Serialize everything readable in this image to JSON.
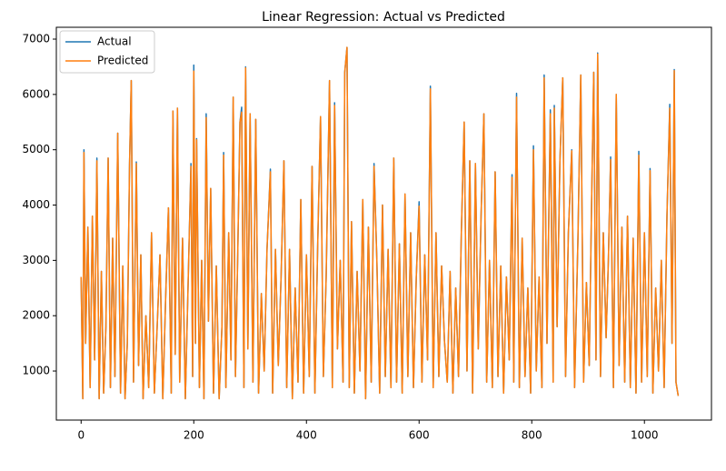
{
  "chart_data": {
    "type": "line",
    "title": "Linear Regression: Actual vs Predicted",
    "x": [
      0,
      3,
      5,
      8,
      12,
      16,
      20,
      24,
      28,
      32,
      36,
      40,
      44,
      48,
      52,
      56,
      60,
      65,
      70,
      74,
      78,
      82,
      86,
      89,
      93,
      98,
      102,
      106,
      110,
      115,
      120,
      125,
      130,
      135,
      140,
      145,
      150,
      155,
      160,
      163,
      167,
      171,
      175,
      180,
      185,
      190,
      195,
      198,
      200,
      203,
      205,
      210,
      214,
      218,
      222,
      226,
      230,
      235,
      240,
      245,
      250,
      253,
      257,
      262,
      266,
      270,
      274,
      278,
      282,
      285,
      289,
      292,
      296,
      300,
      305,
      310,
      315,
      320,
      325,
      330,
      336,
      340,
      345,
      350,
      355,
      360,
      365,
      370,
      375,
      380,
      385,
      390,
      395,
      400,
      405,
      410,
      415,
      420,
      425,
      430,
      435,
      441,
      446,
      450,
      455,
      460,
      465,
      468,
      472,
      476,
      480,
      485,
      490,
      495,
      500,
      505,
      510,
      515,
      520,
      525,
      530,
      535,
      540,
      545,
      550,
      555,
      560,
      565,
      570,
      575,
      580,
      585,
      590,
      595,
      600,
      605,
      610,
      615,
      620,
      625,
      630,
      635,
      640,
      645,
      650,
      655,
      660,
      665,
      670,
      675,
      680,
      685,
      690,
      695,
      700,
      705,
      710,
      715,
      720,
      725,
      730,
      735,
      740,
      745,
      750,
      755,
      760,
      765,
      768,
      773,
      778,
      783,
      788,
      793,
      798,
      803,
      808,
      813,
      818,
      822,
      827,
      833,
      838,
      840,
      845,
      850,
      855,
      860,
      865,
      871,
      876,
      882,
      887,
      892,
      897,
      902,
      906,
      910,
      914,
      917,
      922,
      927,
      932,
      936,
      940,
      945,
      950,
      955,
      960,
      965,
      970,
      975,
      980,
      985,
      990,
      995,
      1000,
      1005,
      1010,
      1015,
      1020,
      1025,
      1030,
      1035,
      1040,
      1045,
      1049,
      1053,
      1056,
      1060
    ],
    "series": [
      {
        "name": "Actual",
        "color": "#1f77b4",
        "values": [
          2700,
          500,
          5000,
          1500,
          3600,
          700,
          3800,
          1200,
          4850,
          500,
          2800,
          600,
          1800,
          4850,
          700,
          3400,
          900,
          5300,
          600,
          2900,
          500,
          1500,
          4750,
          6250,
          800,
          4780,
          1100,
          3100,
          500,
          2000,
          700,
          3500,
          600,
          1800,
          3100,
          500,
          2300,
          3950,
          600,
          5700,
          1300,
          5750,
          800,
          3400,
          500,
          2600,
          4750,
          900,
          6530,
          1500,
          5200,
          700,
          3000,
          500,
          5650,
          1900,
          4300,
          600,
          2900,
          500,
          1800,
          4950,
          700,
          3500,
          1200,
          5950,
          900,
          3100,
          5500,
          5770,
          700,
          6500,
          1400,
          5650,
          800,
          5550,
          600,
          2400,
          1000,
          3200,
          4650,
          600,
          3200,
          1100,
          2700,
          4800,
          700,
          3200,
          500,
          2500,
          800,
          4100,
          600,
          3100,
          900,
          4700,
          600,
          3300,
          5600,
          900,
          2700,
          6250,
          700,
          5850,
          1400,
          3000,
          800,
          6400,
          6850,
          700,
          3700,
          600,
          2800,
          1000,
          4100,
          500,
          3600,
          800,
          4750,
          3000,
          600,
          4000,
          900,
          3200,
          700,
          4850,
          800,
          3300,
          600,
          4200,
          900,
          3500,
          700,
          2700,
          4060,
          800,
          3100,
          1200,
          6150,
          700,
          3500,
          900,
          2900,
          1550,
          800,
          2800,
          600,
          2500,
          900,
          3500,
          5500,
          1000,
          4800,
          600,
          4750,
          1400,
          3800,
          5650,
          800,
          3000,
          700,
          4600,
          900,
          2900,
          600,
          2700,
          1200,
          4550,
          800,
          6020,
          700,
          3400,
          900,
          2500,
          600,
          5070,
          1000,
          2700,
          700,
          6350,
          1500,
          5720,
          800,
          5800,
          1800,
          4800,
          6300,
          900,
          3500,
          5000,
          700,
          3400,
          6350,
          800,
          2600,
          1100,
          3900,
          6400,
          1200,
          6750,
          900,
          3500,
          1600,
          3000,
          4870,
          700,
          6000,
          1100,
          3600,
          800,
          3800,
          700,
          3400,
          600,
          4970,
          800,
          3500,
          900,
          4660,
          600,
          2500,
          1000,
          3000,
          700,
          3800,
          5820,
          1500,
          6450,
          800,
          550
        ]
      },
      {
        "name": "Predicted",
        "color": "#ff7f0e",
        "values": [
          2700,
          500,
          4950,
          1500,
          3600,
          700,
          3800,
          1200,
          4800,
          500,
          2800,
          600,
          1800,
          4850,
          700,
          3400,
          900,
          5300,
          600,
          2900,
          500,
          1500,
          4750,
          6250,
          800,
          4750,
          1100,
          3100,
          500,
          2000,
          700,
          3500,
          600,
          1800,
          3100,
          500,
          2300,
          3950,
          600,
          5700,
          1300,
          5750,
          800,
          3400,
          500,
          2600,
          4700,
          900,
          6420,
          1500,
          5180,
          700,
          3000,
          500,
          5580,
          1900,
          4300,
          600,
          2900,
          500,
          1800,
          4900,
          700,
          3500,
          1200,
          5950,
          900,
          3100,
          5500,
          5680,
          700,
          6480,
          1400,
          5650,
          800,
          5550,
          600,
          2400,
          1000,
          3200,
          4600,
          600,
          3200,
          1100,
          2700,
          4800,
          700,
          3200,
          500,
          2500,
          800,
          4100,
          600,
          3100,
          900,
          4700,
          600,
          3300,
          5600,
          900,
          2700,
          6250,
          700,
          5800,
          1400,
          3000,
          800,
          6400,
          6850,
          700,
          3700,
          600,
          2800,
          1000,
          4100,
          500,
          3600,
          800,
          4700,
          3000,
          600,
          4000,
          900,
          3200,
          700,
          4850,
          800,
          3300,
          600,
          4200,
          900,
          3500,
          700,
          2700,
          3980,
          800,
          3100,
          1200,
          6100,
          700,
          3500,
          900,
          2900,
          1550,
          800,
          2800,
          600,
          2500,
          900,
          3500,
          5500,
          1000,
          4800,
          600,
          4750,
          1400,
          3800,
          5650,
          800,
          3000,
          700,
          4600,
          900,
          2900,
          600,
          2700,
          1200,
          4500,
          800,
          5950,
          700,
          3400,
          900,
          2500,
          600,
          5000,
          1000,
          2700,
          700,
          6300,
          1500,
          5650,
          800,
          5750,
          1800,
          4800,
          6300,
          900,
          3500,
          4980,
          700,
          3400,
          6350,
          800,
          2600,
          1100,
          3900,
          6400,
          1200,
          6730,
          900,
          3500,
          1600,
          3000,
          4820,
          700,
          6000,
          1100,
          3600,
          800,
          3800,
          700,
          3400,
          600,
          4900,
          800,
          3500,
          900,
          4620,
          600,
          2500,
          1000,
          3000,
          700,
          3800,
          5750,
          1500,
          6430,
          800,
          550
        ]
      }
    ],
    "xlim": [
      -44,
      1119
    ],
    "xticks": [
      0,
      200,
      400,
      600,
      800,
      1000
    ],
    "ylim": [
      113,
      7214
    ],
    "yticks": [
      1000,
      2000,
      3000,
      4000,
      5000,
      6000,
      7000
    ],
    "legend": "upper left",
    "grid": false
  }
}
